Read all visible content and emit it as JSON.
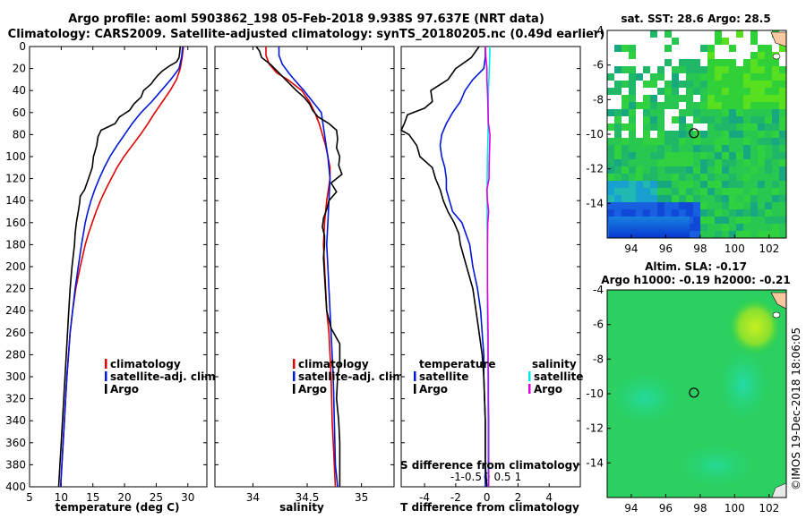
{
  "figure": {
    "title_line1": "Argo profile: aoml 5903862_198 05-Feb-2018 9.938S 97.637E (NRT data)",
    "title_line2": "Climatology: CARS2009. Satellite-adjusted climatology: synTS_20180205.nc (0.49d earlier)",
    "credit": "©IMOS 19-Dec-2018 18:06:05"
  },
  "colors": {
    "climatology": "#e00000",
    "satellite": "#0018d8",
    "argo": "#000000",
    "argo_salinity": "#e000e0",
    "satellite_salinity": "#00e8e8"
  },
  "chart_data": [
    {
      "type": "line",
      "name": "temperature",
      "xlabel": "temperature (deg C)",
      "xlim": [
        5,
        33
      ],
      "xticks": [
        5,
        10,
        15,
        20,
        25,
        30
      ],
      "ylim": [
        0,
        400
      ],
      "yticks": [
        0,
        20,
        40,
        60,
        80,
        100,
        120,
        140,
        160,
        180,
        200,
        220,
        240,
        260,
        280,
        300,
        320,
        340,
        360,
        380,
        400
      ],
      "legend": [
        "climatology",
        "satellite-adj. clim.",
        "Argo"
      ],
      "series": [
        {
          "name": "climatology",
          "color_key": "climatology",
          "depth": [
            0,
            10,
            20,
            30,
            40,
            50,
            60,
            70,
            80,
            90,
            100,
            110,
            120,
            130,
            140,
            150,
            160,
            170,
            180,
            190,
            200,
            220,
            240,
            260,
            300,
            340,
            380,
            400
          ],
          "values": [
            29.3,
            29.1,
            28.8,
            28.2,
            27.2,
            26.0,
            24.8,
            23.7,
            22.5,
            21.2,
            19.9,
            18.8,
            17.9,
            17.0,
            16.2,
            15.5,
            14.9,
            14.3,
            13.8,
            13.4,
            13.0,
            12.3,
            11.8,
            11.4,
            10.9,
            10.5,
            10.1,
            9.9
          ]
        },
        {
          "name": "satellite-adj. clim.",
          "color_key": "satellite",
          "depth": [
            0,
            10,
            20,
            30,
            40,
            50,
            60,
            70,
            80,
            90,
            100,
            110,
            120,
            130,
            140,
            150,
            160,
            180,
            200,
            220,
            240,
            260,
            300,
            340,
            380,
            400
          ],
          "values": [
            29.2,
            29.0,
            28.6,
            27.3,
            25.8,
            24.3,
            22.6,
            21.2,
            20.0,
            18.8,
            17.7,
            16.8,
            16.0,
            15.3,
            14.7,
            14.2,
            13.8,
            13.2,
            12.7,
            12.2,
            11.8,
            11.4,
            10.9,
            10.5,
            10.1,
            9.9
          ]
        },
        {
          "name": "Argo",
          "color_key": "argo",
          "depth": [
            0,
            6,
            10,
            14,
            18,
            22,
            26,
            30,
            34,
            40,
            46,
            52,
            58,
            64,
            70,
            76,
            82,
            90,
            100,
            110,
            120,
            130,
            136,
            142,
            150,
            160,
            170,
            180,
            190,
            200,
            220,
            240,
            260,
            280,
            300,
            320,
            340,
            360,
            380,
            400
          ],
          "values": [
            28.8,
            28.7,
            28.6,
            28.2,
            27.0,
            26.0,
            25.3,
            24.7,
            24.2,
            23.0,
            22.6,
            21.5,
            20.8,
            19.2,
            18.5,
            16.3,
            15.8,
            15.6,
            15.1,
            14.9,
            14.3,
            13.7,
            13.0,
            12.9,
            12.7,
            12.4,
            12.2,
            12.1,
            11.9,
            11.7,
            11.4,
            11.2,
            11.0,
            10.8,
            10.6,
            10.4,
            10.2,
            10.0,
            9.8,
            9.6
          ]
        }
      ]
    },
    {
      "type": "line",
      "name": "salinity",
      "xlabel": "salinity",
      "xlim": [
        33.65,
        35.3
      ],
      "xticks": [
        34,
        34.5,
        35
      ],
      "ylim": [
        0,
        400
      ],
      "legend": [
        "climatology",
        "satellite-adj. clim.",
        "Argo"
      ],
      "series": [
        {
          "name": "climatology",
          "color_key": "climatology",
          "depth": [
            0,
            8,
            16,
            24,
            30,
            40,
            50,
            60,
            70,
            80,
            90,
            100,
            110,
            120,
            140,
            160,
            180,
            200,
            220,
            240,
            260,
            280,
            300,
            340,
            380,
            400
          ],
          "values": [
            34.12,
            34.12,
            34.15,
            34.22,
            34.32,
            34.45,
            34.52,
            34.57,
            34.61,
            34.64,
            34.67,
            34.69,
            34.71,
            34.71,
            34.68,
            34.66,
            34.65,
            34.66,
            34.67,
            34.68,
            34.7,
            34.71,
            34.72,
            34.73,
            34.75,
            34.76
          ]
        },
        {
          "name": "satellite-adj. clim.",
          "color_key": "satellite",
          "depth": [
            0,
            8,
            16,
            24,
            30,
            40,
            50,
            60,
            80,
            100,
            120,
            140,
            160,
            180,
            200,
            220,
            240,
            260,
            280,
            300,
            340,
            380,
            400
          ],
          "values": [
            34.24,
            34.24,
            34.27,
            34.33,
            34.38,
            34.47,
            34.55,
            34.63,
            34.66,
            34.69,
            34.71,
            34.7,
            34.69,
            34.68,
            34.69,
            34.7,
            34.71,
            34.72,
            34.73,
            34.74,
            34.75,
            34.76,
            34.78
          ]
        },
        {
          "name": "Argo",
          "color_key": "argo",
          "depth": [
            0,
            4,
            10,
            16,
            22,
            28,
            34,
            40,
            46,
            52,
            58,
            64,
            70,
            76,
            84,
            92,
            100,
            108,
            116,
            124,
            132,
            140,
            148,
            156,
            164,
            172,
            180,
            192,
            208,
            224,
            240,
            256,
            270,
            286,
            300,
            320,
            340,
            360,
            380,
            400
          ],
          "values": [
            34.03,
            34.06,
            34.08,
            34.16,
            34.22,
            34.28,
            34.34,
            34.4,
            34.47,
            34.52,
            34.55,
            34.6,
            34.7,
            34.77,
            34.78,
            34.77,
            34.8,
            34.79,
            34.82,
            34.72,
            34.77,
            34.7,
            34.68,
            34.65,
            34.64,
            34.66,
            34.66,
            34.65,
            34.66,
            34.67,
            34.68,
            34.72,
            34.8,
            34.8,
            34.78,
            34.77,
            34.79,
            34.8,
            34.8,
            34.8
          ]
        }
      ]
    },
    {
      "type": "line",
      "name": "differences",
      "xlabel_bottom": "T difference from climatology",
      "xlabel_top": "S difference from climatology",
      "xlim": [
        -5.5,
        6
      ],
      "t_ticks": [
        -4,
        -2,
        0,
        2,
        4
      ],
      "s_ticks": [
        -1,
        -0.5,
        0,
        0.5,
        1
      ],
      "s_tick_scale": 2,
      "ylim": [
        0,
        400
      ],
      "legend_temperature_title": "temperature",
      "legend_salinity_title": "salinity",
      "legend_temperature": [
        "satellite",
        "Argo"
      ],
      "legend_salinity": [
        "satellite",
        "Argo"
      ],
      "series": [
        {
          "name": "T satellite",
          "color_key": "satellite",
          "units": "t",
          "depth": [
            0,
            10,
            20,
            30,
            40,
            50,
            60,
            70,
            80,
            90,
            100,
            110,
            120,
            130,
            140,
            150,
            160,
            180,
            200,
            220,
            240,
            260,
            280,
            300,
            340,
            380,
            400
          ],
          "values": [
            -0.1,
            -0.1,
            -0.2,
            -0.9,
            -1.4,
            -1.7,
            -2.2,
            -2.6,
            -2.9,
            -3.0,
            -2.9,
            -2.7,
            -2.6,
            -2.6,
            -2.4,
            -2.2,
            -1.6,
            -1.1,
            -0.9,
            -0.6,
            -0.4,
            -0.3,
            -0.2,
            -0.2,
            -0.1,
            -0.1,
            -0.1
          ]
        },
        {
          "name": "T Argo",
          "color_key": "argo",
          "units": "t",
          "depth": [
            0,
            10,
            20,
            30,
            40,
            50,
            56,
            62,
            70,
            76,
            80,
            90,
            100,
            110,
            120,
            130,
            140,
            150,
            160,
            170,
            180,
            200,
            220,
            240,
            260,
            280,
            300,
            340,
            380,
            400
          ],
          "values": [
            -0.5,
            -1.0,
            -2.0,
            -2.5,
            -3.6,
            -3.5,
            -4.0,
            -5.1,
            -5.3,
            -5.5,
            -5.0,
            -4.5,
            -4.3,
            -3.5,
            -3.3,
            -3.0,
            -2.8,
            -2.5,
            -2.1,
            -1.8,
            -1.7,
            -1.3,
            -0.9,
            -0.7,
            -0.5,
            -0.3,
            -0.2,
            -0.1,
            -0.1,
            0.0
          ]
        },
        {
          "name": "S satellite",
          "color_key": "satellite_salinity",
          "units": "s",
          "depth": [
            0,
            20,
            40,
            60,
            80,
            100,
            120,
            140,
            160,
            180,
            200,
            240,
            280,
            300,
            340,
            380,
            400
          ],
          "values": [
            0.1,
            0.08,
            0.05,
            0.04,
            0.04,
            0.02,
            0.01,
            0.01,
            0.01,
            0.02,
            0.02,
            0.02,
            0.03,
            0.03,
            0.04,
            0.04,
            0.05
          ]
        },
        {
          "name": "S Argo",
          "color_key": "argo_salinity",
          "units": "s",
          "depth": [
            0,
            10,
            20,
            30,
            40,
            50,
            60,
            70,
            80,
            90,
            100,
            110,
            120,
            130,
            140,
            150,
            160,
            180,
            200,
            220,
            240,
            260,
            280,
            300,
            320,
            340,
            360,
            380,
            400
          ],
          "values": [
            -0.05,
            -0.03,
            0.0,
            0.0,
            0.02,
            0.03,
            0.04,
            0.05,
            0.1,
            0.09,
            0.08,
            0.07,
            0.07,
            0.0,
            0.02,
            0.06,
            0.03,
            0.02,
            0.02,
            0.02,
            0.03,
            0.04,
            0.04,
            0.05,
            0.05,
            0.06,
            0.06,
            0.06,
            0.06
          ]
        }
      ]
    },
    {
      "type": "heatmap",
      "name": "sst_map",
      "title": "sat. SST: 28.6 Argo: 28.5",
      "xticks": [
        94,
        96,
        98,
        100,
        102
      ],
      "yticks": [
        -4,
        -6,
        -8,
        -10,
        -12,
        -14
      ],
      "xlim": [
        92.6,
        103.0
      ],
      "ylim": [
        -4,
        -16
      ],
      "argo_marker": {
        "lon": 97.637,
        "lat": -9.938
      }
    },
    {
      "type": "heatmap",
      "name": "sla_map",
      "title_line1": "Altim. SLA: -0.17",
      "title_line2": "Argo h1000: -0.19 h2000: -0.21",
      "xticks": [
        94,
        96,
        98,
        100,
        102
      ],
      "yticks": [
        -4,
        -6,
        -8,
        -10,
        -12,
        -14
      ],
      "xlim": [
        92.6,
        103.0
      ],
      "ylim": [
        -4,
        -16
      ],
      "argo_marker": {
        "lon": 97.637,
        "lat": -9.938
      }
    }
  ]
}
